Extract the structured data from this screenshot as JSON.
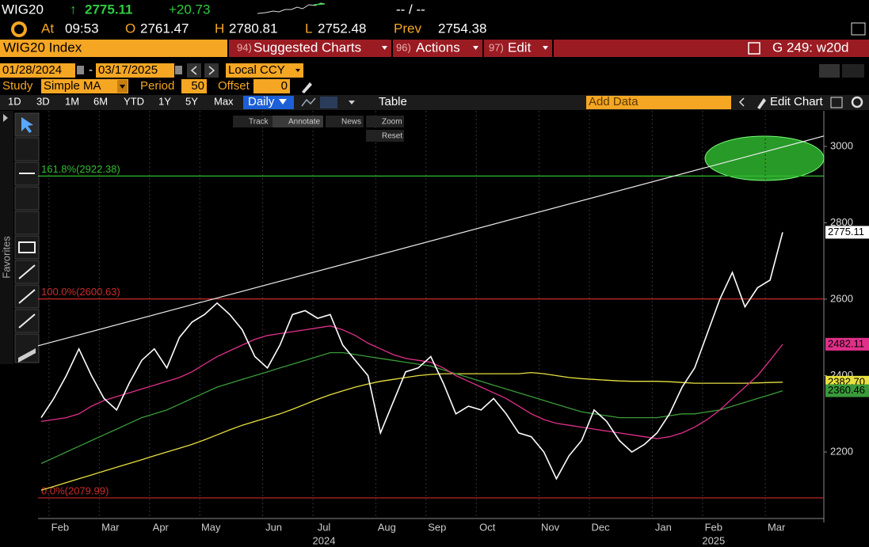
{
  "header": {
    "ticker": "WIG20",
    "arrow": "↑",
    "last": "2775.11",
    "change": "+20.73",
    "bid_ask": "-- / --",
    "at_label": "At",
    "time": "09:53",
    "open_label": "O",
    "open": "2761.47",
    "high_label": "H",
    "high": "2780.81",
    "low_label": "L",
    "low": "2752.48",
    "prev_label": "Prev",
    "prev": "2754.38"
  },
  "menu": {
    "security": "WIG20 Index",
    "items": [
      {
        "num": "94)",
        "label": "Suggested Charts"
      },
      {
        "num": "96)",
        "label": "Actions"
      },
      {
        "num": "97)",
        "label": "Edit"
      }
    ],
    "function": "G 249: w20d"
  },
  "dates": {
    "start": "01/28/2024",
    "sep": "-",
    "end": "03/17/2025",
    "currency": "Local CCY"
  },
  "study": {
    "label": "Study",
    "name": "Simple MA",
    "period_label": "Period",
    "period": "50",
    "offset_label": "Offset",
    "offset": "0"
  },
  "toolbar": {
    "ranges": [
      "1D",
      "3D",
      "1M",
      "6M",
      "YTD",
      "1Y",
      "5Y",
      "Max"
    ],
    "frequency": "Daily",
    "table": "Table",
    "add_data": "Add Data",
    "edit_chart": "Edit Chart"
  },
  "sidebar": {
    "favorites": "Favorites"
  },
  "chart_tools": [
    "Track",
    "Annotate",
    "News",
    "Zoom",
    "Reset"
  ],
  "chart": {
    "type": "line",
    "categories": [
      null,
      "Feb",
      null,
      null,
      null,
      "Mar",
      null,
      null,
      null,
      "Apr",
      null,
      null,
      null,
      "May",
      null,
      null,
      null,
      null,
      "Jun",
      null,
      null,
      null,
      "Jul",
      null,
      null,
      null,
      null,
      "Aug",
      null,
      null,
      null,
      "Sep",
      null,
      null,
      null,
      "Oct",
      null,
      null,
      null,
      null,
      "Nov",
      null,
      null,
      null,
      "Dec",
      null,
      null,
      null,
      null,
      "Jan",
      null,
      null,
      null,
      "Feb",
      null,
      null,
      null,
      null,
      "Mar",
      null
    ],
    "years": [
      null,
      null,
      null,
      null,
      null,
      null,
      null,
      null,
      null,
      null,
      null,
      null,
      null,
      null,
      null,
      null,
      null,
      null,
      null,
      null,
      null,
      null,
      "2024",
      null,
      null,
      null,
      null,
      null,
      null,
      null,
      null,
      null,
      null,
      null,
      null,
      null,
      null,
      null,
      null,
      null,
      null,
      null,
      null,
      null,
      null,
      null,
      null,
      null,
      null,
      null,
      null,
      null,
      null,
      "2025",
      null,
      null,
      null,
      null,
      null,
      null
    ],
    "series": [
      {
        "color": "#e8e040",
        "values": [
          2100,
          2110,
          2120,
          2130,
          2140,
          2150,
          2160,
          2170,
          2180,
          2190,
          2200,
          2210,
          2220,
          2232,
          2245,
          2258,
          2270,
          2280,
          2290,
          2300,
          2312,
          2325,
          2338,
          2350,
          2360,
          2370,
          2378,
          2385,
          2390,
          2395,
          2400,
          2403,
          2405,
          2405,
          2405,
          2405,
          2405,
          2405,
          2405,
          2408,
          2405,
          2400,
          2395,
          2392,
          2390,
          2388,
          2386,
          2385,
          2385,
          2385,
          2384,
          2382,
          2380,
          2380,
          2380,
          2380,
          2380,
          2381,
          2382,
          2382.7
        ],
        "tag": {
          "value": 2382.7,
          "label": "2382.70"
        }
      },
      {
        "color": "#3a9a3a",
        "values": [
          2170,
          2185,
          2200,
          2215,
          2230,
          2245,
          2260,
          2275,
          2290,
          2300,
          2310,
          2325,
          2340,
          2355,
          2370,
          2380,
          2390,
          2400,
          2410,
          2420,
          2430,
          2440,
          2450,
          2460,
          2460,
          2455,
          2450,
          2445,
          2440,
          2435,
          2430,
          2425,
          2415,
          2405,
          2395,
          2385,
          2375,
          2365,
          2355,
          2345,
          2335,
          2325,
          2315,
          2305,
          2300,
          2295,
          2290,
          2290,
          2290,
          2290,
          2295,
          2300,
          2300,
          2305,
          2310,
          2320,
          2330,
          2340,
          2350,
          2360.46
        ],
        "tag": 2360.46
      },
      {
        "color": "#e0308a",
        "values": [
          2280,
          2285,
          2290,
          2300,
          2320,
          2335,
          2345,
          2355,
          2365,
          2375,
          2385,
          2395,
          2410,
          2430,
          2450,
          2465,
          2480,
          2495,
          2505,
          2510,
          2515,
          2520,
          2525,
          2530,
          2520,
          2505,
          2485,
          2470,
          2455,
          2445,
          2440,
          2435,
          2420,
          2400,
          2385,
          2370,
          2355,
          2340,
          2320,
          2300,
          2285,
          2275,
          2270,
          2265,
          2260,
          2255,
          2250,
          2245,
          2240,
          2235,
          2240,
          2250,
          2265,
          2285,
          2310,
          2340,
          2370,
          2400,
          2440,
          2482.11
        ],
        "tag": 2482.11
      },
      {
        "color": "#ffffff",
        "values": [
          2290,
          2340,
          2400,
          2470,
          2400,
          2340,
          2310,
          2380,
          2440,
          2470,
          2420,
          2500,
          2540,
          2560,
          2590,
          2560,
          2520,
          2450,
          2420,
          2480,
          2560,
          2570,
          2550,
          2560,
          2480,
          2440,
          2400,
          2250,
          2330,
          2410,
          2420,
          2450,
          2380,
          2300,
          2320,
          2310,
          2340,
          2300,
          2250,
          2240,
          2200,
          2130,
          2190,
          2230,
          2310,
          2280,
          2230,
          2200,
          2220,
          2250,
          2300,
          2370,
          2420,
          2510,
          2600,
          2670,
          2580,
          2630,
          2650,
          2775.11
        ],
        "tag": 2775.11
      }
    ],
    "fib_levels": [
      {
        "label": "161.8%(2922.38)",
        "value": 2922.38,
        "color": "#33bb33"
      },
      {
        "label": "100.0%(2600.63)",
        "value": 2600.63,
        "color": "#cc2a2a"
      },
      {
        "label": "0.0%(2079.99)",
        "value": 2079.99,
        "color": "#cc2a2a"
      }
    ],
    "trendline": [
      2478,
      3027
    ],
    "ylim": [
      2026,
      3093
    ],
    "yticks": [
      2200,
      2400,
      2600,
      2800,
      3000
    ],
    "grid": true
  }
}
